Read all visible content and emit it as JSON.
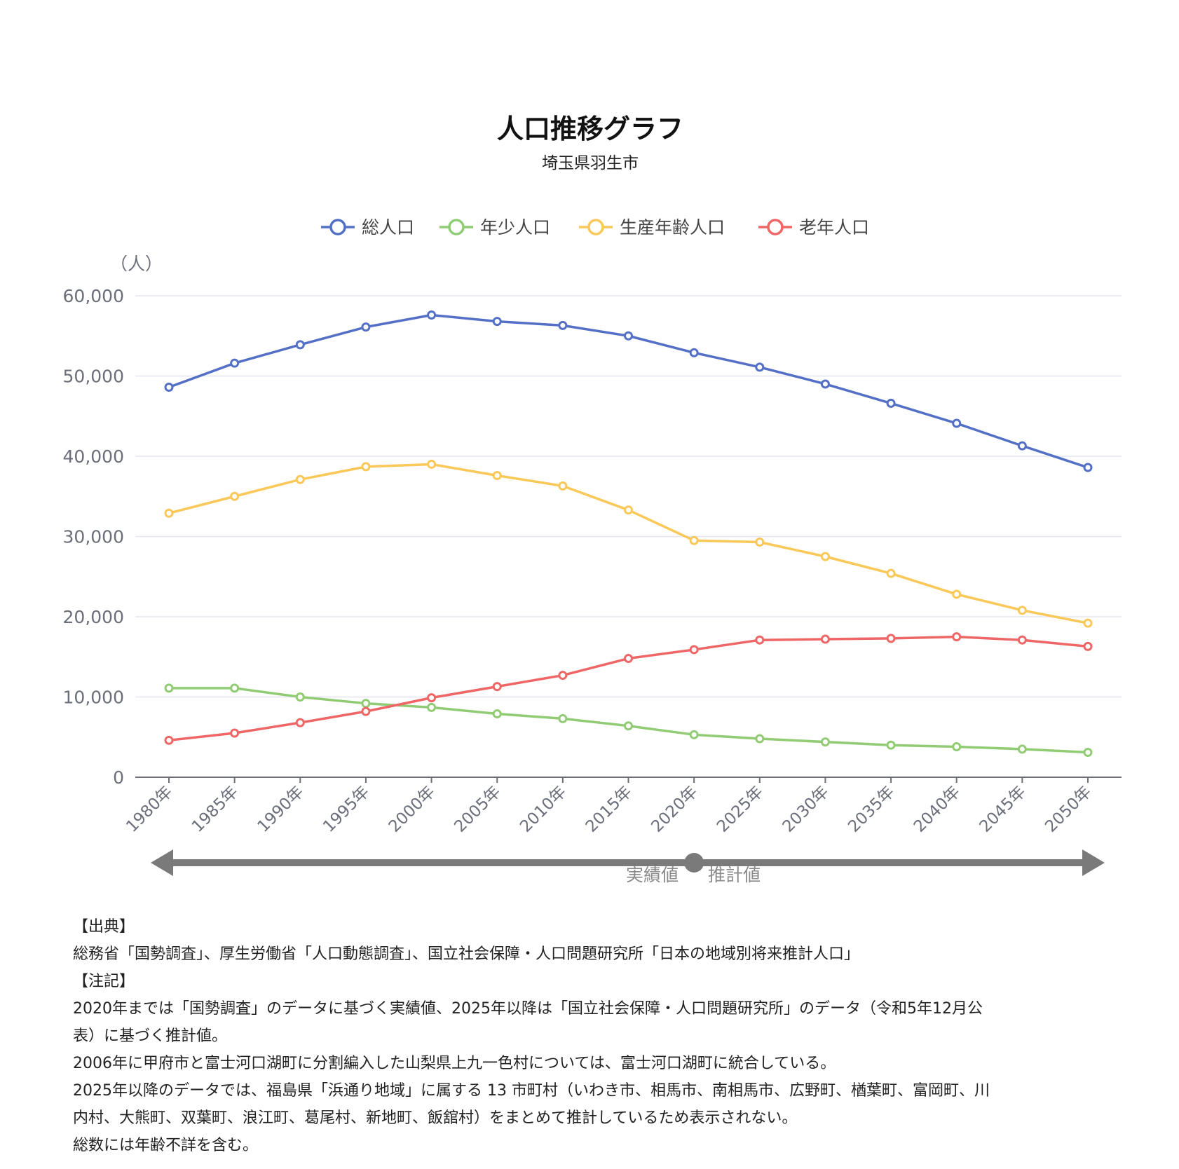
{
  "chart_data": {
    "type": "line",
    "title": "人口推移グラフ",
    "subtitle": "埼玉県羽生市",
    "unit_label": "（人）",
    "ylim": [
      0,
      60000
    ],
    "y_ticks": [
      "0",
      "10,000",
      "20,000",
      "30,000",
      "40,000",
      "50,000",
      "60,000"
    ],
    "y_tick_values": [
      0,
      10000,
      20000,
      30000,
      40000,
      50000,
      60000
    ],
    "grid": true,
    "legend_position": "top",
    "categories": [
      "1980年",
      "1985年",
      "1990年",
      "1995年",
      "2000年",
      "2005年",
      "2010年",
      "2015年",
      "2020年",
      "2025年",
      "2030年",
      "2035年",
      "2040年",
      "2045年",
      "2050年"
    ],
    "series": [
      {
        "name": "総人口",
        "color": "#5470c6",
        "values": [
          48600,
          51600,
          53900,
          56100,
          57600,
          56800,
          56300,
          55000,
          52900,
          51100,
          49000,
          46600,
          44100,
          41300,
          38600
        ]
      },
      {
        "name": "年少人口",
        "color": "#91cc75",
        "values": [
          11100,
          11100,
          10000,
          9200,
          8700,
          7900,
          7300,
          6400,
          5300,
          4800,
          4400,
          4000,
          3800,
          3500,
          3100
        ]
      },
      {
        "name": "生産年齢人口",
        "color": "#fac858",
        "values": [
          32900,
          35000,
          37100,
          38700,
          39000,
          37600,
          36300,
          33300,
          29500,
          29300,
          27500,
          25400,
          22800,
          20800,
          19200
        ]
      },
      {
        "name": "老年人口",
        "color": "#ee6666",
        "values": [
          4600,
          5500,
          6800,
          8200,
          9900,
          11300,
          12700,
          14800,
          15900,
          17100,
          17200,
          17300,
          17500,
          17100,
          16300
        ]
      }
    ],
    "phase": {
      "actual_label": "実績値",
      "estimate_label": "推計値",
      "divider_category": "2020年"
    }
  },
  "notes": {
    "source_heading": "【出典】",
    "source_text": "総務省「国勢調査」、厚生労働省「人口動態調査」、国立社会保障・人口問題研究所「日本の地域別将来推計人口」",
    "notes_heading": "【注記】",
    "lines": [
      "2020年までは「国勢調査」のデータに基づく実績値、2025年以降は「国立社会保障・人口問題研究所」のデータ（令和5年12月公\n表）に基づく推計値。",
      "2006年に甲府市と富士河口湖町に分割編入した山梨県上九一色村については、富士河口湖町に統合している。",
      "2025年以降のデータでは、福島県「浜通り地域」に属する 13 市町村（いわき市、相馬市、南相馬市、広野町、楢葉町、富岡町、川\n内村、大熊町、双葉町、浪江町、葛尾村、新地町、飯舘村）をまとめて推計しているため表示されない。",
      "総数には年齢不詳を含む。"
    ]
  }
}
